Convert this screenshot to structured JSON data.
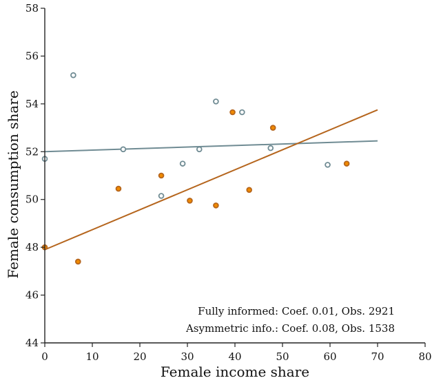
{
  "chart_data": {
    "type": "scatter",
    "xlabel": "Female income share",
    "ylabel": "Female consumption share",
    "xlim": [
      0,
      80
    ],
    "ylim": [
      44,
      58
    ],
    "xticks": [
      0,
      10,
      20,
      30,
      40,
      50,
      60,
      70,
      80
    ],
    "yticks": [
      44,
      46,
      48,
      50,
      52,
      54,
      56,
      58
    ],
    "grid": false,
    "legend": "none",
    "series": [
      {
        "key": "fully_informed",
        "color": "#6f8b93",
        "fill": "#ffffff",
        "points": [
          {
            "x": 0,
            "y": 51.7
          },
          {
            "x": 6,
            "y": 55.2
          },
          {
            "x": 16.5,
            "y": 52.1
          },
          {
            "x": 24.5,
            "y": 50.15
          },
          {
            "x": 29,
            "y": 51.5
          },
          {
            "x": 32.5,
            "y": 52.1
          },
          {
            "x": 36,
            "y": 54.1
          },
          {
            "x": 41.5,
            "y": 53.65
          },
          {
            "x": 47.5,
            "y": 52.15
          },
          {
            "x": 59.5,
            "y": 51.45
          }
        ],
        "fit": {
          "x": [
            0,
            70
          ],
          "y": [
            52.0,
            52.45
          ]
        }
      },
      {
        "key": "asymmetric_info",
        "color": "#b5651d",
        "fill": "#f08a00",
        "points": [
          {
            "x": 0,
            "y": 48.0
          },
          {
            "x": 7,
            "y": 47.4
          },
          {
            "x": 15.5,
            "y": 50.45
          },
          {
            "x": 24.5,
            "y": 51.0
          },
          {
            "x": 30.5,
            "y": 49.95
          },
          {
            "x": 36,
            "y": 49.75
          },
          {
            "x": 39.5,
            "y": 53.65
          },
          {
            "x": 43,
            "y": 50.4
          },
          {
            "x": 48,
            "y": 53.0
          },
          {
            "x": 63.5,
            "y": 51.5
          }
        ],
        "fit": {
          "x": [
            0,
            70
          ],
          "y": [
            47.9,
            53.75
          ]
        }
      }
    ],
    "annotations": [
      "Fully informed: Coef. 0.01, Obs. 2921",
      "Asymmetric info.: Coef. 0.08, Obs. 1538"
    ]
  }
}
